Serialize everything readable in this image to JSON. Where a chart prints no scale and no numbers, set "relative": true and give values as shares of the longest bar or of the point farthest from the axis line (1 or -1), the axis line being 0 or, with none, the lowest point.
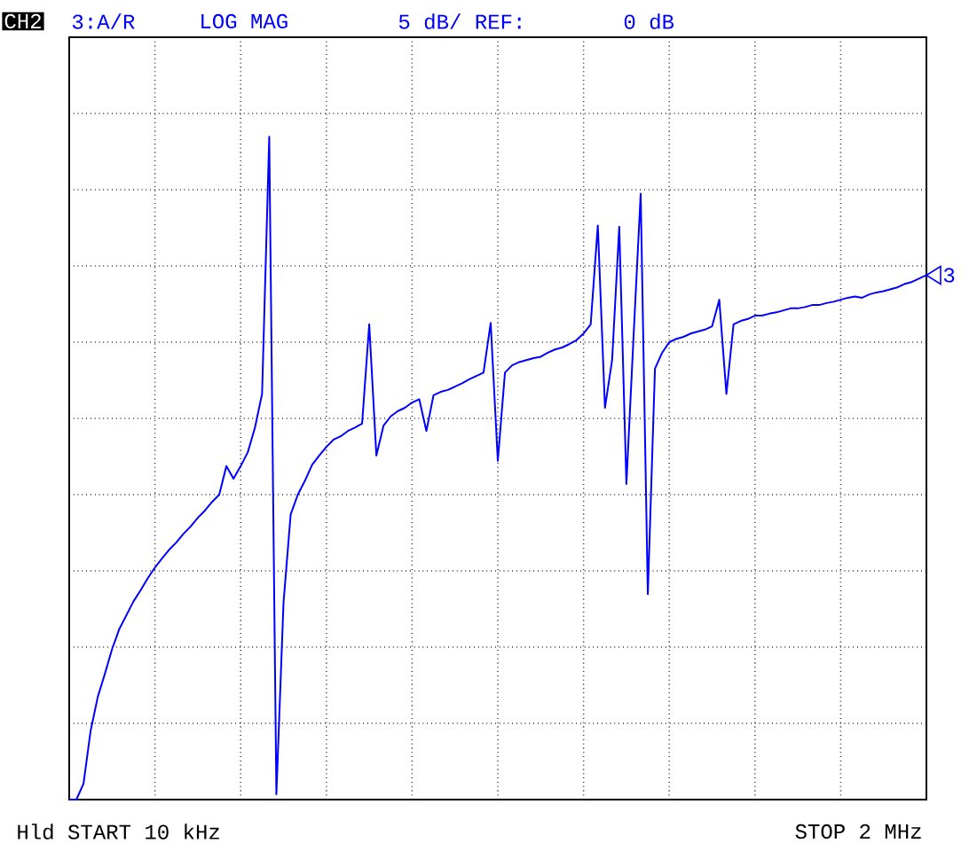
{
  "chart_data": {
    "type": "line",
    "relative": true,
    "categories": [
      null,
      null,
      null,
      null,
      null,
      null,
      null,
      null,
      null,
      null,
      null,
      null,
      null,
      null,
      null,
      null,
      null,
      null,
      null,
      null,
      null,
      null,
      null,
      null,
      null,
      null,
      null,
      null,
      null,
      null,
      null,
      null,
      null,
      null,
      null,
      null,
      null,
      null,
      null,
      null,
      null,
      null,
      null,
      null,
      null,
      null,
      null,
      null,
      null,
      null,
      null,
      null,
      null,
      null,
      null,
      null,
      null,
      null,
      null,
      null,
      null,
      null,
      null,
      null,
      null,
      null,
      null,
      null,
      null,
      null,
      null,
      null,
      null,
      null,
      null,
      null,
      null,
      null,
      null,
      null,
      null,
      null,
      null,
      null,
      null,
      null,
      null,
      null,
      null,
      null,
      null,
      null,
      null,
      null,
      null,
      null,
      null,
      null,
      null,
      null,
      null,
      null,
      null,
      null,
      null,
      null,
      null,
      null,
      null,
      null,
      null,
      null,
      null,
      null,
      null,
      null,
      null,
      null,
      null,
      null,
      null
    ],
    "series": [
      {
        "color": "#0000ff",
        "values": [
          0,
          0,
          0.024,
          0.104,
          0.155,
          0.19,
          0.227,
          0.257,
          0.278,
          0.299,
          0.316,
          0.334,
          0.35,
          0.364,
          0.377,
          0.388,
          0.401,
          0.412,
          0.425,
          0.436,
          0.449,
          0.46,
          0.503,
          0.484,
          0.503,
          0.524,
          0.561,
          0.612,
          1,
          0.008,
          0.297,
          0.43,
          0.46,
          0.481,
          0.505,
          0.519,
          0.532,
          0.543,
          0.548,
          0.556,
          0.561,
          0.567,
          0.717,
          0.519,
          0.564,
          0.578,
          0.586,
          0.591,
          0.599,
          0.604,
          0.556,
          0.61,
          0.615,
          0.618,
          0.623,
          0.628,
          0.634,
          0.639,
          0.644,
          0.719,
          0.511,
          0.644,
          0.655,
          0.66,
          0.663,
          0.666,
          0.668,
          0.674,
          0.679,
          0.682,
          0.687,
          0.693,
          0.703,
          0.717,
          0.866,
          0.591,
          0.663,
          0.864,
          0.476,
          0.698,
          0.914,
          0.31,
          0.65,
          0.674,
          0.69,
          0.695,
          0.698,
          0.703,
          0.706,
          0.709,
          0.714,
          0.754,
          0.612,
          0.717,
          0.722,
          0.725,
          0.73,
          0.73,
          0.733,
          0.735,
          0.738,
          0.741,
          0.741,
          0.743,
          0.746,
          0.746,
          0.749,
          0.751,
          0.754,
          0.757,
          0.759,
          0.757,
          0.762,
          0.765,
          0.767,
          0.77,
          0.773,
          0.778,
          0.781,
          0.786,
          0.791
        ]
      }
    ],
    "grid": true,
    "annotations": [
      "CH2",
      "3:A/R",
      "LOG MAG",
      "5 dB/ REF:",
      "0 dB",
      "Hld START 10 kHz",
      "STOP 2 MHz",
      "3"
    ]
  }
}
